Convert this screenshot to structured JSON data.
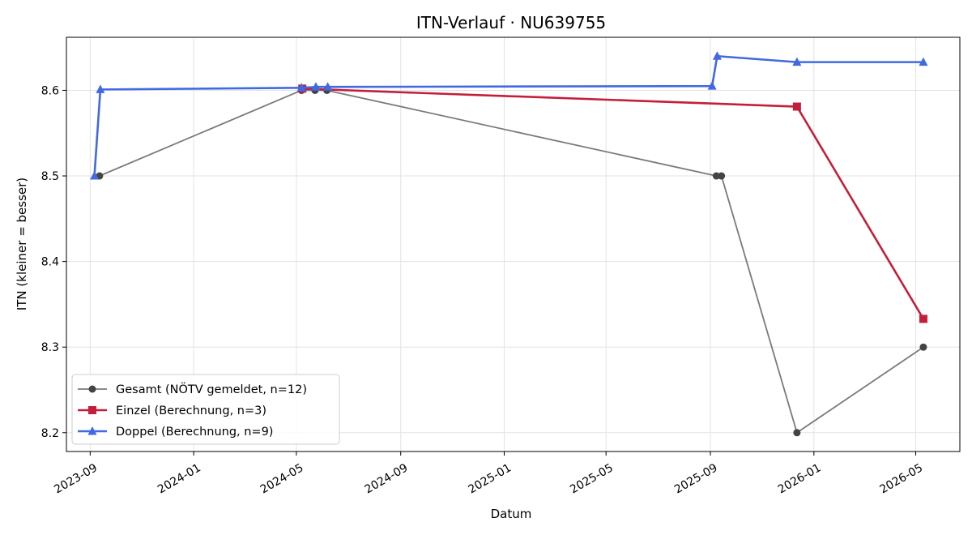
{
  "chart_data": {
    "type": "line",
    "title": "ITN-Verlauf · NU639755",
    "xlabel": "Datum",
    "ylabel": "ITN  (kleiner = besser)",
    "xlim": [
      "2023-08-04",
      "2026-06-22"
    ],
    "ylim": [
      8.178,
      8.662
    ],
    "x_ticks": [
      "2023-09-01",
      "2024-01-01",
      "2024-05-01",
      "2024-09-01",
      "2025-01-01",
      "2025-05-01",
      "2025-09-01",
      "2026-01-01",
      "2026-05-01"
    ],
    "x_tick_labels": [
      "2023-09",
      "2024-01",
      "2024-05",
      "2024-09",
      "2025-01",
      "2025-05",
      "2025-09",
      "2026-01",
      "2026-05"
    ],
    "y_ticks": [
      8.2,
      8.3,
      8.4,
      8.5,
      8.6
    ],
    "y_tick_labels": [
      "8.2",
      "8.3",
      "8.4",
      "8.5",
      "8.6"
    ],
    "grid": true,
    "legend_position": "lower-left",
    "series": [
      {
        "name": "Gesamt (NÖTV gemeldet, n=12)",
        "color": "#444444",
        "marker": "circle",
        "points": [
          {
            "x": "2023-09-12",
            "y": 8.5
          },
          {
            "x": "2024-05-07",
            "y": 8.6
          },
          {
            "x": "2024-05-23",
            "y": 8.6
          },
          {
            "x": "2024-06-06",
            "y": 8.6
          },
          {
            "x": "2025-09-08",
            "y": 8.5
          },
          {
            "x": "2025-09-14",
            "y": 8.5
          },
          {
            "x": "2025-12-12",
            "y": 8.2
          },
          {
            "x": "2026-05-10",
            "y": 8.3
          }
        ]
      },
      {
        "name": "Einzel (Berechnung, n=3)",
        "color": "#c41e3a",
        "marker": "square",
        "points": [
          {
            "x": "2024-05-08",
            "y": 8.602
          },
          {
            "x": "2025-12-12",
            "y": 8.581
          },
          {
            "x": "2026-05-10",
            "y": 8.333
          }
        ]
      },
      {
        "name": "Doppel (Berechnung, n=9)",
        "color": "#4169e1",
        "marker": "triangle",
        "points": [
          {
            "x": "2023-09-06",
            "y": 8.5
          },
          {
            "x": "2023-09-13",
            "y": 8.601
          },
          {
            "x": "2024-05-07",
            "y": 8.603
          },
          {
            "x": "2024-05-24",
            "y": 8.604
          },
          {
            "x": "2024-06-07",
            "y": 8.604
          },
          {
            "x": "2025-09-03",
            "y": 8.605
          },
          {
            "x": "2025-09-09",
            "y": 8.64
          },
          {
            "x": "2025-12-12",
            "y": 8.633
          },
          {
            "x": "2026-05-10",
            "y": 8.633
          }
        ]
      }
    ]
  }
}
